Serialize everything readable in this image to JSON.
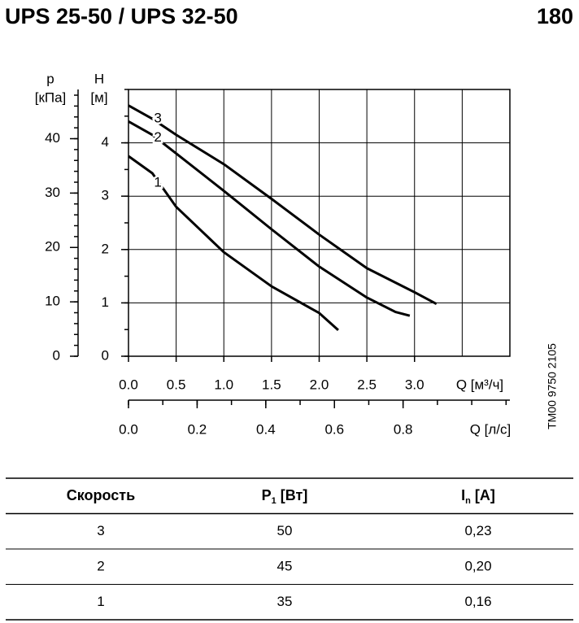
{
  "chart_data": {
    "type": "line",
    "title": "UPS 25-50 / UPS 32-50",
    "page_number": "180",
    "x_label": "Q [м³/ч]",
    "x2_label": "Q [л/с]",
    "y_label": "H",
    "y_unit": "[м]",
    "y2_label": "p",
    "y2_unit": "[кПа]",
    "xlim": [
      0,
      4
    ],
    "xticks": [
      {
        "value": 0,
        "label": "0.0"
      },
      0.5,
      {
        "value": 1,
        "label": "1.0"
      },
      1.5,
      {
        "value": 2,
        "label": "2.0"
      },
      2.5,
      {
        "value": 3,
        "label": "3.0"
      }
    ],
    "x2lim": [
      0,
      1.1111
    ],
    "x2ticks": [
      {
        "value": 0,
        "label": "0.0"
      },
      0.2,
      0.4,
      0.6,
      0.8
    ],
    "ylim": [
      0,
      5
    ],
    "yticks": [
      0,
      1,
      2,
      3,
      4
    ],
    "y2lim": [
      0,
      49.05
    ],
    "y2ticks": [
      0,
      10,
      20,
      30,
      40
    ],
    "grid": true,
    "series": [
      {
        "name": "3",
        "color": "#000000",
        "x": [
          0,
          0.25,
          0.5,
          1.0,
          1.5,
          2.0,
          2.5,
          3.0,
          3.23
        ],
        "values": [
          4.7,
          4.45,
          4.15,
          3.6,
          2.95,
          2.28,
          1.65,
          1.2,
          0.98
        ]
      },
      {
        "name": "2",
        "color": "#000000",
        "x": [
          0,
          0.25,
          0.5,
          1.0,
          1.5,
          2.0,
          2.5,
          2.8,
          2.95
        ],
        "values": [
          4.4,
          4.15,
          3.8,
          3.1,
          2.38,
          1.68,
          1.1,
          0.83,
          0.76
        ]
      },
      {
        "name": "1",
        "color": "#000000",
        "x": [
          0,
          0.25,
          0.5,
          1.0,
          1.5,
          2.0,
          2.2
        ],
        "values": [
          3.75,
          3.43,
          2.8,
          1.95,
          1.31,
          0.81,
          0.49
        ]
      }
    ],
    "side_code": "TM00 9750 2105"
  },
  "table": {
    "header": [
      "Скорость",
      {
        "text": "P",
        "sub": "1",
        "rest": " [Вт]"
      },
      {
        "text": "I",
        "sub": "n",
        "rest": " [A]"
      }
    ],
    "rows": [
      [
        "3",
        "50",
        "0,23"
      ],
      [
        "2",
        "45",
        "0,20"
      ],
      [
        "1",
        "35",
        "0,16"
      ]
    ]
  }
}
